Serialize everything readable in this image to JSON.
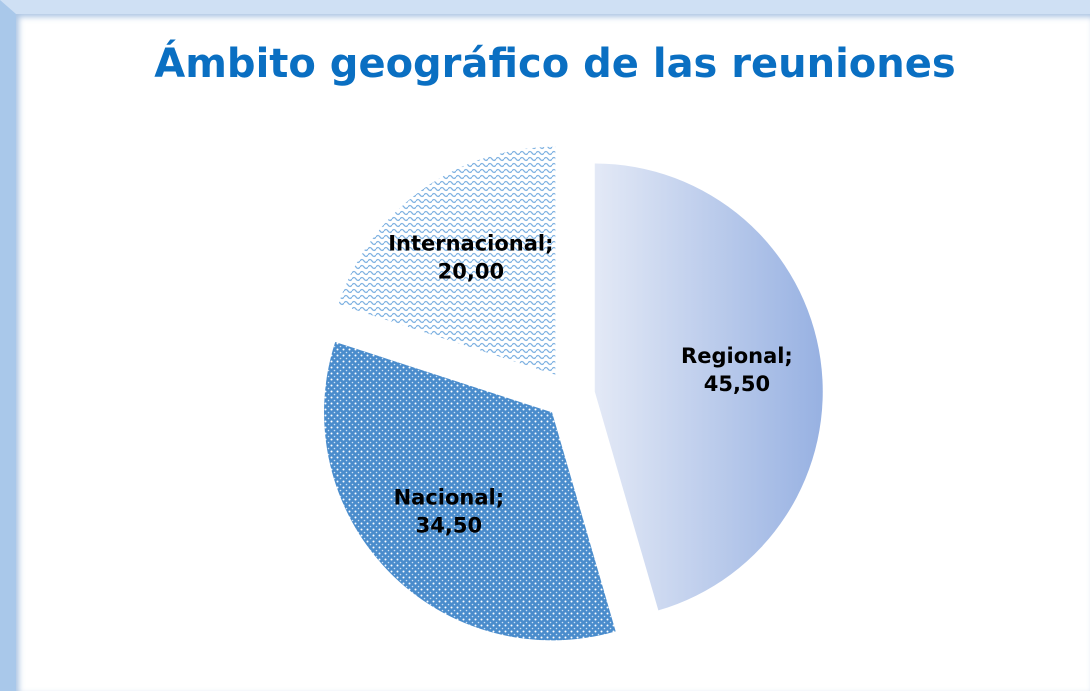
{
  "chart_data": {
    "type": "pie",
    "title": "Ámbito geográfico de las reuniones",
    "categories": [
      "Regional;",
      "Nacional;",
      "Internacional;"
    ],
    "values": [
      45.5,
      34.5,
      20.0
    ],
    "value_labels": [
      "45,50",
      "34,50",
      "20,00"
    ],
    "colors": [
      "#a9bfe8",
      "#4a8ccc",
      "#8fbde6"
    ]
  }
}
